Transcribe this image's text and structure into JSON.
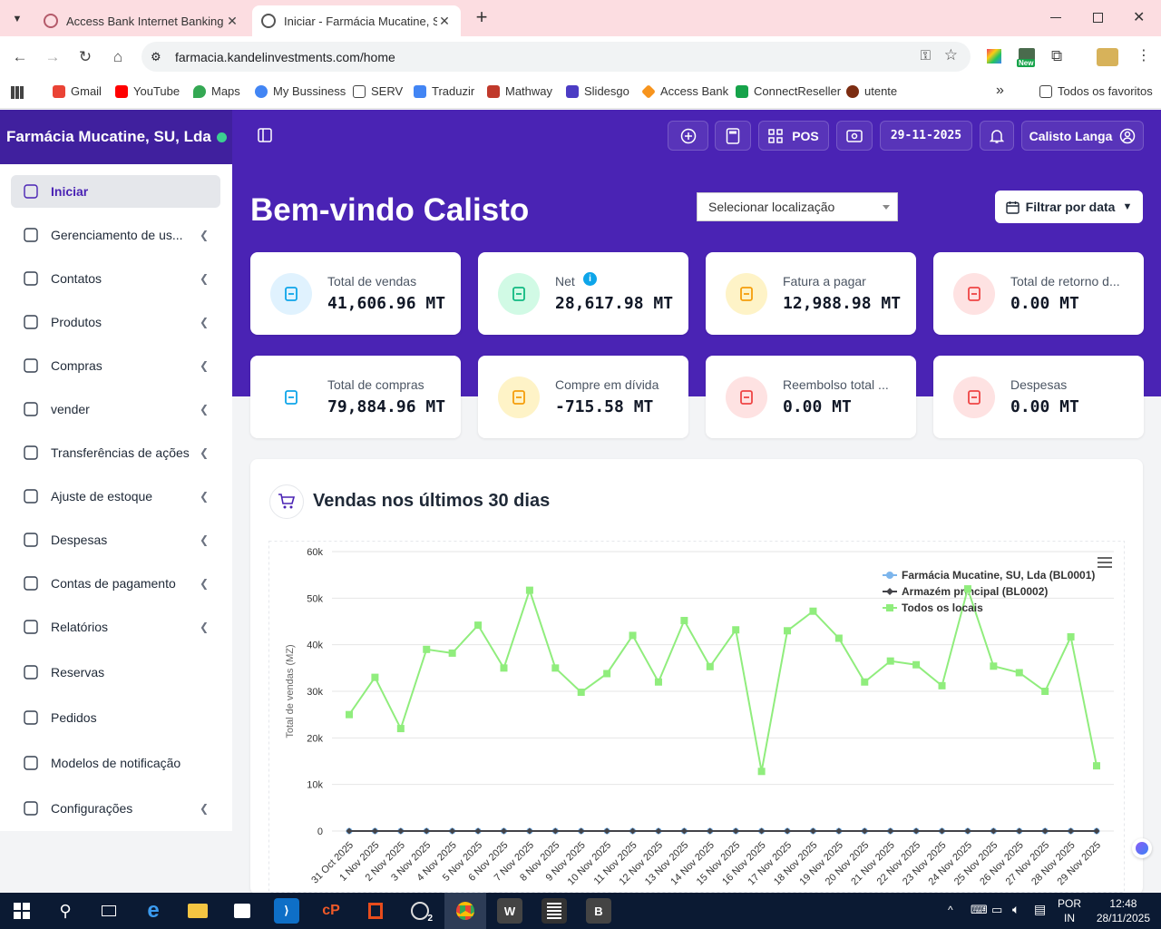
{
  "browser": {
    "tabs": [
      {
        "title": "Access Bank Internet Banking",
        "active": false
      },
      {
        "title": "Iniciar - Farmácia Mucatine, SU, Lda",
        "active": true
      }
    ],
    "new_tab": "+",
    "url": "farmacia.kandelinvestments.com/home",
    "bookmarks": [
      "Gmail",
      "YouTube",
      "Maps",
      "My Bussiness",
      "SERV",
      "Traduzir",
      "Mathway",
      "Slidesgo",
      "Access Bank",
      "ConnectReseller",
      "utente"
    ],
    "more_bookmarks": "»",
    "all_favorites": "Todos os favoritos",
    "extension_badge": "New"
  },
  "header": {
    "brand": "Farmácia Mucatine, SU, Lda",
    "pos_label": "POS",
    "date": "29-11-2025",
    "user": "Calisto Langa"
  },
  "sidebar": {
    "items": [
      {
        "label": "Iniciar",
        "icon": "home-icon",
        "chevron": false,
        "active": true
      },
      {
        "label": "Gerenciamento de us...",
        "icon": "users-icon",
        "chevron": true
      },
      {
        "label": "Contatos",
        "icon": "contact-icon",
        "chevron": true
      },
      {
        "label": "Produtos",
        "icon": "box-icon",
        "chevron": true
      },
      {
        "label": "Compras",
        "icon": "download-icon",
        "chevron": true
      },
      {
        "label": "vender",
        "icon": "upload-icon",
        "chevron": true
      },
      {
        "label": "Transferências de ações",
        "icon": "truck-icon",
        "chevron": true
      },
      {
        "label": "Ajuste de estoque",
        "icon": "database-icon",
        "chevron": true
      },
      {
        "label": "Despesas",
        "icon": "dollar-doc-icon",
        "chevron": true
      },
      {
        "label": "Contas de pagamento",
        "icon": "credit-card-icon",
        "chevron": true
      },
      {
        "label": "Relatórios",
        "icon": "report-icon",
        "chevron": true
      },
      {
        "label": "Reservas",
        "icon": "calendar-check-icon",
        "chevron": false
      },
      {
        "label": "Pedidos",
        "icon": "list-icon",
        "chevron": false
      },
      {
        "label": "Modelos de notificação",
        "icon": "mail-icon",
        "chevron": false
      },
      {
        "label": "Configurações",
        "icon": "gear-icon",
        "chevron": true
      }
    ]
  },
  "main": {
    "welcome": "Bem-vindo Calisto",
    "location_placeholder": "Selecionar localização",
    "date_filter": "Filtrar por data",
    "cards": [
      {
        "label": "Total de vendas",
        "value": "41,606.96 MT",
        "icon": "cart-icon",
        "color": "#0ea5e9",
        "bg": "#e0f2fe",
        "info": false
      },
      {
        "label": "Net",
        "value": "28,617.98 MT",
        "icon": "dollar-icon",
        "color": "#10b981",
        "bg": "#d1fae5",
        "info": true
      },
      {
        "label": "Fatura a pagar",
        "value": "12,988.98 MT",
        "icon": "invoice-icon",
        "color": "#f59e0b",
        "bg": "#fef3c7",
        "info": false
      },
      {
        "label": "Total de retorno d...",
        "value": "0.00 MT",
        "icon": "swap-icon",
        "color": "#ef4444",
        "bg": "#fee2e2",
        "info": false
      },
      {
        "label": "Total de compras",
        "value": "79,884.96 MT",
        "icon": "download-icon",
        "color": "#0ea5e9",
        "bg": "#ffffff",
        "info": false
      },
      {
        "label": "Compre em dívida",
        "value": "-715.58 MT",
        "icon": "warning-icon",
        "color": "#f59e0b",
        "bg": "#fef3c7",
        "info": false
      },
      {
        "label": "Reembolso total ...",
        "value": "0.00 MT",
        "icon": "refund-icon",
        "color": "#ef4444",
        "bg": "#fee2e2",
        "info": false
      },
      {
        "label": "Despesas",
        "value": "0.00 MT",
        "icon": "dollar-doc-icon",
        "color": "#ef4444",
        "bg": "#fee2e2",
        "info": false
      }
    ],
    "chart_title": "Vendas nos últimos 30 dias"
  },
  "chart_data": {
    "type": "line",
    "title": "",
    "ylabel": "Total de vendas (MZ)",
    "xlabel": "",
    "ylim": [
      0,
      60000
    ],
    "yticks": [
      "0",
      "10k",
      "20k",
      "30k",
      "40k",
      "50k",
      "60k"
    ],
    "legend_position": "top-right",
    "categories": [
      "31 Oct 2025",
      "1 Nov 2025",
      "2 Nov 2025",
      "3 Nov 2025",
      "4 Nov 2025",
      "5 Nov 2025",
      "6 Nov 2025",
      "7 Nov 2025",
      "8 Nov 2025",
      "9 Nov 2025",
      "10 Nov 2025",
      "11 Nov 2025",
      "12 Nov 2025",
      "13 Nov 2025",
      "14 Nov 2025",
      "15 Nov 2025",
      "16 Nov 2025",
      "17 Nov 2025",
      "18 Nov 2025",
      "19 Nov 2025",
      "20 Nov 2025",
      "21 Nov 2025",
      "22 Nov 2025",
      "23 Nov 2025",
      "24 Nov 2025",
      "25 Nov 2025",
      "26 Nov 2025",
      "27 Nov 2025",
      "28 Nov 2025",
      "29 Nov 2025"
    ],
    "series": [
      {
        "name": "Farmácia Mucatine, SU, Lda (BL0001)",
        "color": "#7cb5ec",
        "marker": "circle",
        "values": [
          0,
          0,
          0,
          0,
          0,
          0,
          0,
          0,
          0,
          0,
          0,
          0,
          0,
          0,
          0,
          0,
          0,
          0,
          0,
          0,
          0,
          0,
          0,
          0,
          0,
          0,
          0,
          0,
          0,
          0
        ]
      },
      {
        "name": "Armazém principal (BL0002)",
        "color": "#434348",
        "marker": "diamond",
        "values": [
          0,
          0,
          0,
          0,
          0,
          0,
          0,
          0,
          0,
          0,
          0,
          0,
          0,
          0,
          0,
          0,
          0,
          0,
          0,
          0,
          0,
          0,
          0,
          0,
          0,
          0,
          0,
          0,
          0,
          0
        ]
      },
      {
        "name": "Todos os locais",
        "color": "#90ed7d",
        "marker": "square",
        "values": [
          25000,
          33000,
          22000,
          39000,
          38200,
          44200,
          35000,
          51700,
          35000,
          29800,
          33800,
          42000,
          32000,
          45200,
          35300,
          43200,
          12800,
          43000,
          47200,
          41400,
          32000,
          36500,
          35700,
          31200,
          52000,
          35400,
          34000,
          30000,
          41700,
          14000
        ]
      }
    ]
  },
  "taskbar": {
    "lang": [
      "POR",
      "IN"
    ],
    "time": "12:48",
    "date": "28/11/2025",
    "chrome_badge": "2"
  }
}
